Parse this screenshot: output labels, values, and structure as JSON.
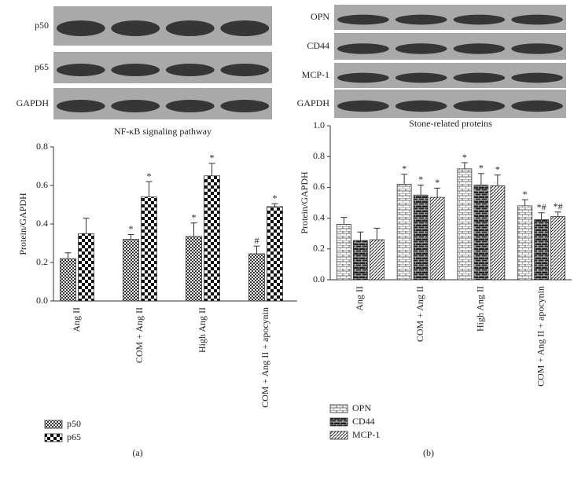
{
  "chart_data": [
    {
      "type": "bar",
      "panel_label": "(a)",
      "blot_caption": "NF-κB signaling pathway",
      "blot_labels": [
        "p50",
        "p65",
        "GAPDH"
      ],
      "ylabel": "Protein/GAPDH",
      "categories": [
        "Ang II",
        "COM + Ang II",
        "High Ang II",
        "COM + Ang II + apocynin"
      ],
      "series": [
        {
          "name": "p50",
          "values": [
            0.22,
            0.32,
            0.335,
            0.245
          ],
          "errors": [
            0.03,
            0.025,
            0.07,
            0.04
          ],
          "annotations": [
            null,
            "*",
            "*",
            "#"
          ]
        },
        {
          "name": "p65",
          "values": [
            0.35,
            0.54,
            0.65,
            0.49
          ],
          "errors": [
            0.08,
            0.08,
            0.065,
            0.015
          ],
          "annotations": [
            null,
            "*",
            "*",
            "*"
          ]
        }
      ],
      "ylim": [
        0,
        0.8
      ],
      "yticks": [
        {
          "value": 0,
          "label": "0.0"
        },
        0.2,
        0.4,
        0.6,
        0.8
      ]
    },
    {
      "type": "bar",
      "panel_label": "(b)",
      "blot_caption": "Stone-related proteins",
      "blot_labels": [
        "OPN",
        "CD44",
        "MCP-1",
        "GAPDH"
      ],
      "ylabel": "Protein/GAPDH",
      "categories": [
        "Ang II",
        "COM + Ang II",
        "High Ang II",
        "COM + Ang II + apocynin"
      ],
      "series": [
        {
          "name": "OPN",
          "values": [
            0.36,
            0.62,
            0.72,
            0.48
          ],
          "errors": [
            0.045,
            0.065,
            0.04,
            0.04
          ],
          "annotations": [
            null,
            "*",
            "*",
            "*"
          ]
        },
        {
          "name": "CD44",
          "values": [
            0.255,
            0.55,
            0.615,
            0.39
          ],
          "errors": [
            0.055,
            0.065,
            0.075,
            0.045
          ],
          "annotations": [
            null,
            "*",
            "*",
            "*#"
          ]
        },
        {
          "name": "MCP-1",
          "values": [
            0.26,
            0.535,
            0.61,
            0.41
          ],
          "errors": [
            0.075,
            0.06,
            0.07,
            0.03
          ],
          "annotations": [
            null,
            "*",
            "*",
            "*#"
          ]
        }
      ],
      "ylim": [
        0,
        1.0
      ],
      "yticks": [
        {
          "value": 0,
          "label": "0.0"
        },
        0.2,
        0.4,
        0.6,
        0.8,
        {
          "value": 1.0,
          "label": "1.0"
        }
      ]
    }
  ]
}
